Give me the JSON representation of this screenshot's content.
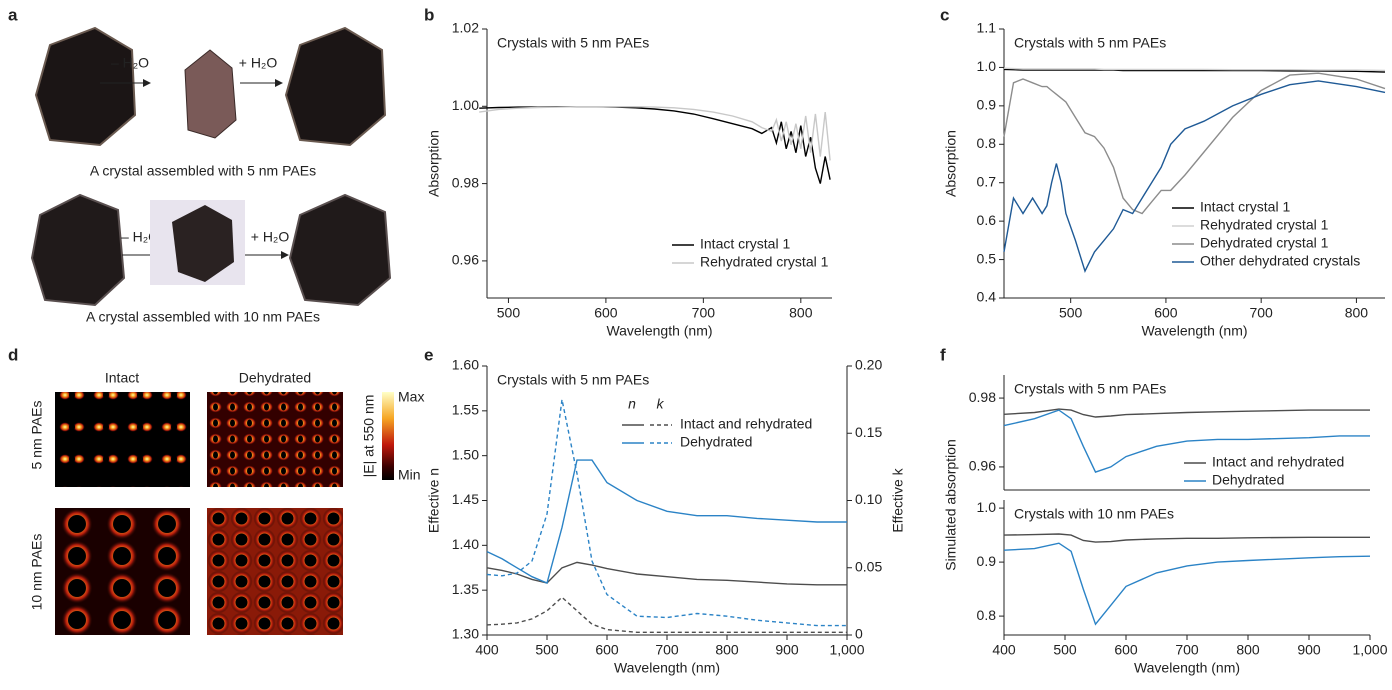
{
  "panel_labels": [
    "a",
    "b",
    "c",
    "d",
    "e",
    "f"
  ],
  "panel_a": {
    "steps": [
      "– H₂O",
      "+ H₂O"
    ],
    "captions": [
      "A crystal assembled with 5 nm PAEs",
      "A crystal assembled with 10 nm PAEs"
    ]
  },
  "panel_d": {
    "columns": [
      "Intact",
      "Dehydrated"
    ],
    "rows": [
      "5 nm PAEs",
      "10 nm PAEs"
    ],
    "colorbar": {
      "label": "|E| at 550 nm",
      "max": "Max",
      "min": "Min"
    }
  },
  "chart_data": [
    {
      "type": "line",
      "annotation": "Crystals with 5 nm PAEs",
      "xlabel": "Wavelength (nm)",
      "ylabel": "Absorption",
      "x": [
        470,
        490,
        510,
        530,
        550,
        570,
        590,
        610,
        630,
        650,
        670,
        690,
        710,
        730,
        750,
        760,
        770,
        775,
        780,
        785,
        790,
        795,
        800,
        805,
        810,
        815,
        820,
        825,
        830
      ],
      "series": [
        {
          "name": "Intact crystal 1",
          "color": "#000000",
          "values": [
            0.9995,
            0.9997,
            0.9998,
            0.9998,
            0.9999,
            0.9999,
            0.9999,
            0.9998,
            0.9996,
            0.9993,
            0.9988,
            0.998,
            0.9968,
            0.9955,
            0.9942,
            0.993,
            0.9945,
            0.9905,
            0.996,
            0.989,
            0.9935,
            0.988,
            0.995,
            0.987,
            0.992,
            0.984,
            0.98,
            0.987,
            0.981
          ]
        },
        {
          "name": "Rehydrated crystal 1",
          "color": "#c8c8c8",
          "values": [
            0.9985,
            0.9992,
            0.9995,
            0.9997,
            0.9998,
            0.9999,
            0.9999,
            0.9999,
            0.9999,
            0.9998,
            0.9996,
            0.9992,
            0.9985,
            0.9975,
            0.996,
            0.9945,
            0.9935,
            0.9965,
            0.991,
            0.996,
            0.99,
            0.9955,
            0.989,
            0.9975,
            0.988,
            0.998,
            0.987,
            0.9985,
            0.986
          ]
        }
      ],
      "xlim": [
        478,
        832
      ],
      "xticks": [
        500,
        600,
        700,
        800
      ],
      "ylim": [
        0.9504,
        1.02
      ],
      "yticks": [
        0.96,
        0.98,
        {
          "value": 1,
          "label": "1.00"
        },
        1.02
      ],
      "legend": "lower right"
    },
    {
      "type": "line",
      "annotation": "Crystals with 5 nm PAEs",
      "xlabel": "Wavelength (nm)",
      "ylabel": "Absorption",
      "x": [
        430,
        440,
        450,
        460,
        470,
        475,
        480,
        485,
        490,
        495,
        505,
        515,
        525,
        535,
        545,
        555,
        565,
        575,
        585,
        595,
        605,
        620,
        640,
        670,
        700,
        730,
        760,
        800,
        830
      ],
      "series": [
        {
          "name": "Intact crystal 1",
          "color": "#000000",
          "values": [
            0.995,
            0.994,
            0.993,
            0.993,
            0.993,
            0.993,
            0.993,
            0.993,
            0.993,
            0.993,
            0.993,
            0.993,
            0.993,
            0.993,
            0.993,
            0.992,
            0.992,
            0.992,
            0.992,
            0.992,
            0.992,
            0.992,
            0.992,
            0.992,
            0.992,
            0.991,
            0.991,
            0.99,
            0.988
          ]
        },
        {
          "name": "Rehydrated crystal 1",
          "color": "#d0d0d0",
          "values": [
            0.998,
            0.997,
            0.996,
            0.996,
            0.996,
            0.996,
            0.996,
            0.996,
            0.996,
            0.996,
            0.996,
            0.996,
            0.996,
            0.995,
            0.995,
            0.995,
            0.995,
            0.995,
            0.995,
            0.995,
            0.995,
            0.995,
            0.995,
            0.994,
            0.994,
            0.994,
            0.993,
            0.993,
            0.992
          ]
        },
        {
          "name": "Dehydrated crystal 1",
          "color": "#8c8c8c",
          "values": [
            0.82,
            0.96,
            0.97,
            0.96,
            0.95,
            0.95,
            0.94,
            0.93,
            0.92,
            0.91,
            0.87,
            0.83,
            0.82,
            0.79,
            0.74,
            0.66,
            0.63,
            0.62,
            0.65,
            0.68,
            0.68,
            0.72,
            0.78,
            0.87,
            0.94,
            0.98,
            0.985,
            0.97,
            0.945
          ]
        },
        {
          "name": "Other dehydrated crystals",
          "color": "#1f5a96",
          "values": [
            0.52,
            0.66,
            0.62,
            0.66,
            0.62,
            0.64,
            0.7,
            0.75,
            0.7,
            0.62,
            0.55,
            0.47,
            0.52,
            0.55,
            0.58,
            0.63,
            0.62,
            0.66,
            0.7,
            0.74,
            0.8,
            0.84,
            0.86,
            0.9,
            0.93,
            0.955,
            0.965,
            0.95,
            0.935
          ]
        }
      ],
      "xlim": [
        430,
        830
      ],
      "xticks": [
        500,
        600,
        700,
        800
      ],
      "ylim": [
        0.4,
        1.1
      ],
      "yticks": [
        0.4,
        0.5,
        0.6,
        0.7,
        0.8,
        0.9,
        {
          "value": 1,
          "label": "1.0"
        },
        1.1
      ],
      "legend": "lower right"
    },
    {
      "type": "line",
      "annotation": "Crystals with 5 nm PAEs",
      "xlabel": "Wavelength (nm)",
      "ylabel": "Effective n",
      "y2label": "Effective k",
      "legend_headers": [
        "n",
        "k"
      ],
      "x": [
        400,
        425,
        450,
        475,
        500,
        525,
        550,
        575,
        600,
        650,
        700,
        750,
        800,
        850,
        900,
        950,
        1000
      ],
      "series": [
        {
          "name": "Intact and rehydrated",
          "color": "#4d4d4d",
          "values": [
            1.375,
            1.372,
            1.368,
            1.362,
            1.358,
            1.375,
            1.381,
            1.378,
            1.374,
            1.368,
            1.365,
            1.362,
            1.361,
            1.359,
            1.357,
            1.356,
            1.356
          ],
          "k_values": [
            0.0075,
            0.008,
            0.009,
            0.012,
            0.018,
            0.028,
            0.018,
            0.008,
            0.004,
            0.002,
            0.002,
            0.002,
            0.002,
            0.002,
            0.002,
            0.002,
            0.002
          ]
        },
        {
          "name": "Dehydrated",
          "color": "#2b83c6",
          "values": [
            1.393,
            1.385,
            1.375,
            1.365,
            1.358,
            1.42,
            1.495,
            1.495,
            1.47,
            1.45,
            1.438,
            1.433,
            1.433,
            1.43,
            1.428,
            1.426,
            1.426
          ],
          "k_values": [
            0.045,
            0.044,
            0.046,
            0.055,
            0.09,
            0.175,
            0.12,
            0.055,
            0.03,
            0.014,
            0.013,
            0.016,
            0.014,
            0.011,
            0.009,
            0.007,
            0.007
          ]
        }
      ],
      "xlim": [
        400,
        1000
      ],
      "xticks": [
        400,
        500,
        600,
        700,
        800,
        900,
        {
          "value": 1000,
          "label": "1,000"
        }
      ],
      "ylim": [
        1.3,
        1.6
      ],
      "yticks": [
        {
          "value": 1.3,
          "label": "1.30"
        },
        1.35,
        {
          "value": 1.4,
          "label": "1.40"
        },
        1.45,
        {
          "value": 1.5,
          "label": "1.50"
        },
        1.55,
        {
          "value": 1.6,
          "label": "1.60"
        }
      ],
      "y2lim": [
        0,
        0.2
      ],
      "y2ticks": [
        0,
        0.05,
        {
          "value": 0.1,
          "label": "0.10"
        },
        0.15,
        {
          "value": 0.2,
          "label": "0.20"
        }
      ],
      "legend": "upper right"
    },
    {
      "type": "line",
      "annotation": "Crystals with 5 nm PAEs",
      "ylabel": "Simulated absorption",
      "x": [
        400,
        450,
        490,
        510,
        530,
        550,
        575,
        600,
        650,
        700,
        750,
        800,
        900,
        950,
        1000
      ],
      "series": [
        {
          "name": "Intact and rehydrated",
          "color": "#4d4d4d",
          "values": [
            0.9753,
            0.9758,
            0.9768,
            0.9765,
            0.9752,
            0.9745,
            0.9748,
            0.9752,
            0.9755,
            0.9758,
            0.976,
            0.9762,
            0.9765,
            0.9765,
            0.9765
          ]
        },
        {
          "name": "Dehydrated",
          "color": "#2b83c6",
          "values": [
            0.972,
            0.974,
            0.9765,
            0.974,
            0.966,
            0.9585,
            0.96,
            0.963,
            0.966,
            0.9675,
            0.968,
            0.968,
            0.9685,
            0.969,
            0.969
          ]
        }
      ],
      "xlim": [
        400,
        1000
      ],
      "ylim": [
        0.9533,
        0.9867
      ],
      "yticks": [
        0.96,
        0.98
      ],
      "legend": "lower right"
    },
    {
      "type": "line",
      "annotation": "Crystals with 10 nm PAEs",
      "xlabel": "Wavelength (nm)",
      "x": [
        400,
        450,
        490,
        510,
        530,
        550,
        575,
        600,
        650,
        700,
        750,
        800,
        900,
        950,
        1000
      ],
      "series": [
        {
          "color": "#4d4d4d",
          "values": [
            0.95,
            0.951,
            0.952,
            0.95,
            0.94,
            0.937,
            0.938,
            0.941,
            0.943,
            0.944,
            0.944,
            0.945,
            0.946,
            0.946,
            0.946
          ]
        },
        {
          "color": "#2b83c6",
          "values": [
            0.922,
            0.925,
            0.935,
            0.92,
            0.85,
            0.785,
            0.82,
            0.855,
            0.88,
            0.893,
            0.9,
            0.903,
            0.908,
            0.91,
            0.911
          ]
        }
      ],
      "xlim": [
        400,
        1000
      ],
      "xticks": [
        400,
        500,
        600,
        700,
        800,
        900,
        {
          "value": 1000,
          "label": "1,000"
        }
      ],
      "ylim": [
        0.765,
        1.015
      ],
      "yticks": [
        0.8,
        0.9,
        {
          "value": 1,
          "label": "1.0"
        }
      ]
    }
  ]
}
